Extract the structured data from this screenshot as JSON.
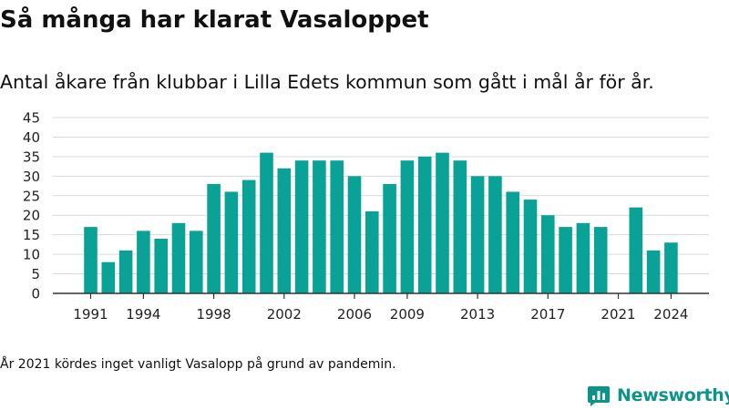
{
  "title": "Så många har klarat Vasaloppet",
  "subtitle": "Antal åkare från klubbar i Lilla Edets kommun som gått i mål år för år.",
  "note": "År 2021 kördes inget vanligt Vasalopp på grund av pandemin.",
  "brand": {
    "name": "Newsworthy",
    "icon": "bar-chart-logo-icon"
  },
  "colors": {
    "bar": "#0aa296",
    "grid": "#d9d9d9",
    "axis": "#333333",
    "brand": "#0d9488"
  },
  "chart_data": {
    "type": "bar",
    "title": "Så många har klarat Vasaloppet",
    "xlabel": "",
    "ylabel": "",
    "categories": [
      1991,
      1992,
      1993,
      1994,
      1995,
      1996,
      1997,
      1998,
      1999,
      2000,
      2001,
      2002,
      2003,
      2004,
      2005,
      2006,
      2007,
      2008,
      2009,
      2010,
      2011,
      2012,
      2013,
      2014,
      2015,
      2016,
      2017,
      2018,
      2019,
      2020,
      2021,
      2022,
      2023,
      2024
    ],
    "values": [
      17,
      8,
      11,
      16,
      14,
      18,
      16,
      28,
      26,
      29,
      36,
      32,
      34,
      34,
      34,
      30,
      21,
      28,
      34,
      35,
      36,
      34,
      30,
      30,
      26,
      24,
      20,
      17,
      18,
      17,
      null,
      22,
      11,
      13
    ],
    "x_tick_labels": [
      "1991",
      "1994",
      "1998",
      "2002",
      "2006",
      "2009",
      "2013",
      "2017",
      "2021",
      "2024"
    ],
    "y_ticks": [
      0,
      5,
      10,
      15,
      20,
      25,
      30,
      35,
      40,
      45
    ],
    "ylim": [
      0,
      45
    ],
    "grid": true,
    "legend": "none"
  }
}
